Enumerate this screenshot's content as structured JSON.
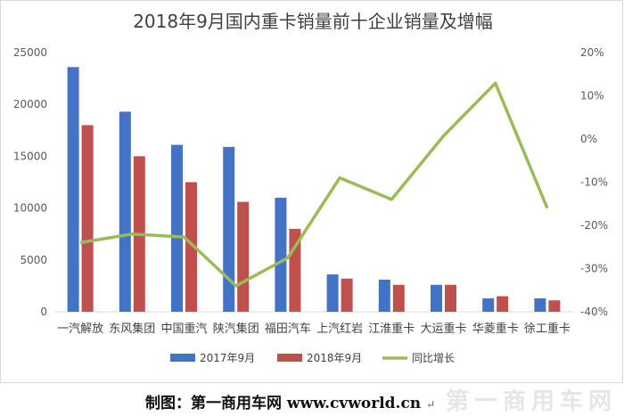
{
  "chart_data": {
    "type": "bar",
    "title": "2018年9月国内重卡销量前十企业销量及增幅",
    "categories": [
      "一汽解放",
      "东风集团",
      "中国重汽",
      "陕汽集团",
      "福田汽车",
      "上汽红岩",
      "江淮重卡",
      "大运重卡",
      "华菱重卡",
      "徐工重卡"
    ],
    "series": [
      {
        "name": "2017年9月",
        "kind": "bar",
        "axis": "left",
        "color": "#4472C4",
        "values": [
          23600,
          19300,
          16100,
          15900,
          11000,
          3600,
          3100,
          2600,
          1300,
          1300
        ]
      },
      {
        "name": "2018年9月",
        "kind": "bar",
        "axis": "left",
        "color": "#C0504D",
        "values": [
          18000,
          15000,
          12500,
          10600,
          8000,
          3200,
          2600,
          2600,
          1500,
          1100
        ]
      },
      {
        "name": "同比增长",
        "kind": "line",
        "axis": "right",
        "color": "#9BBB59",
        "values": [
          -24,
          -22,
          -22.7,
          -34,
          -27.5,
          -9,
          -14,
          0.7,
          12.9,
          -16
        ]
      }
    ],
    "y_left": {
      "min": 0,
      "max": 25000,
      "ticks": [
        0,
        5000,
        10000,
        15000,
        20000,
        25000
      ],
      "tick_labels": [
        "0",
        "5000",
        "10000",
        "15000",
        "20000",
        "25000"
      ]
    },
    "y_right": {
      "min": -40,
      "max": 20,
      "ticks": [
        -40,
        -30,
        -20,
        -10,
        0,
        10,
        20
      ],
      "tick_labels": [
        "-40%",
        "-30%",
        "-20%",
        "-10%",
        "0%",
        "10%",
        "20%"
      ]
    },
    "grid": false,
    "legend_position": "bottom"
  },
  "credit": {
    "text": "制图：第一商用车网 www.cvworld.cn",
    "watermark": "第一商用车网"
  }
}
